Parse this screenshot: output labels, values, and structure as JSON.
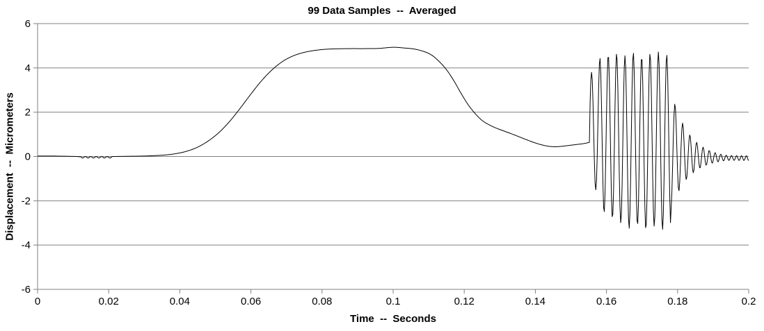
{
  "chart_data": {
    "type": "line",
    "title": "99 Data Samples  --  Averaged",
    "xlabel": "Time  --  Seconds",
    "ylabel": "Displacement  --  Micrometers",
    "xlim": [
      0,
      0.2
    ],
    "ylim": [
      -6,
      6
    ],
    "x_ticks": {
      "values": [
        0,
        0.02,
        0.04,
        0.06,
        0.08,
        0.1,
        0.12,
        0.14,
        0.16,
        0.18,
        0.2
      ],
      "labels": [
        "0",
        "0.02",
        "0.04",
        "0.06",
        "0.08",
        "0.1",
        "0.12",
        "0.14",
        "0.16",
        "0.18",
        "0.2"
      ]
    },
    "y_ticks": {
      "values": [
        6,
        4,
        2,
        0,
        -2,
        -4,
        -6
      ],
      "labels": [
        "6",
        "4",
        "2",
        "0",
        "-2",
        "-4",
        "-6"
      ]
    },
    "grid": {
      "horizontal": true,
      "vertical": false
    },
    "legend": "none",
    "colors": {
      "line": "#000000",
      "grid": "#808080",
      "axis": "#808080",
      "text": "#000000",
      "background": "#ffffff"
    },
    "sample_dt": 0.0002,
    "series": {
      "name": "displacement",
      "baseline_keypoints": [
        [
          0,
          0.02
        ],
        [
          0.004,
          0.02
        ],
        [
          0.008,
          0.01
        ],
        [
          0.0115,
          0.0
        ],
        [
          0.021,
          0.0
        ],
        [
          0.026,
          0.01
        ],
        [
          0.03,
          0.02
        ],
        [
          0.033,
          0.04
        ],
        [
          0.036,
          0.07
        ],
        [
          0.039,
          0.13
        ],
        [
          0.042,
          0.24
        ],
        [
          0.045,
          0.42
        ],
        [
          0.048,
          0.7
        ],
        [
          0.051,
          1.08
        ],
        [
          0.054,
          1.58
        ],
        [
          0.057,
          2.18
        ],
        [
          0.06,
          2.82
        ],
        [
          0.063,
          3.42
        ],
        [
          0.066,
          3.92
        ],
        [
          0.069,
          4.3
        ],
        [
          0.072,
          4.55
        ],
        [
          0.075,
          4.7
        ],
        [
          0.078,
          4.79
        ],
        [
          0.081,
          4.84
        ],
        [
          0.084,
          4.86
        ],
        [
          0.088,
          4.87
        ],
        [
          0.092,
          4.87
        ],
        [
          0.096,
          4.88
        ],
        [
          0.1,
          4.93
        ],
        [
          0.103,
          4.9
        ],
        [
          0.106,
          4.85
        ],
        [
          0.109,
          4.72
        ],
        [
          0.111,
          4.56
        ],
        [
          0.113,
          4.28
        ],
        [
          0.115,
          3.92
        ],
        [
          0.117,
          3.44
        ],
        [
          0.119,
          2.88
        ],
        [
          0.121,
          2.36
        ],
        [
          0.123,
          1.95
        ],
        [
          0.125,
          1.63
        ],
        [
          0.127,
          1.43
        ],
        [
          0.129,
          1.28
        ],
        [
          0.131,
          1.16
        ],
        [
          0.134,
          0.98
        ],
        [
          0.137,
          0.79
        ],
        [
          0.14,
          0.61
        ],
        [
          0.143,
          0.48
        ],
        [
          0.1455,
          0.44
        ],
        [
          0.148,
          0.47
        ],
        [
          0.151,
          0.53
        ],
        [
          0.1535,
          0.58
        ],
        [
          0.1553,
          0.64
        ]
      ],
      "noise_segment": {
        "t0": 0.0115,
        "t1": 0.021,
        "amp": 0.035,
        "freq": 650,
        "offset": -0.035
      },
      "burst": {
        "t_start": 0.1553,
        "t_end": 0.178125,
        "freq": 425.532,
        "first_peak_t": 0.1558,
        "peak_env": [
          [
            0.1558,
            3.8
          ],
          [
            0.15815,
            4.45
          ],
          [
            0.1605,
            4.6
          ],
          [
            0.16285,
            4.65
          ],
          [
            0.1652,
            4.55
          ],
          [
            0.16755,
            4.7
          ],
          [
            0.1699,
            4.5
          ],
          [
            0.17225,
            4.65
          ],
          [
            0.1746,
            4.72
          ],
          [
            0.17695,
            4.6
          ]
        ],
        "trough_env": [
          [
            0.156975,
            -1.5
          ],
          [
            0.15932,
            -2.55
          ],
          [
            0.161675,
            -2.8
          ],
          [
            0.16402,
            -3.0
          ],
          [
            0.166375,
            -3.25
          ],
          [
            0.16872,
            -3.1
          ],
          [
            0.171075,
            -3.3
          ],
          [
            0.17342,
            -3.15
          ],
          [
            0.175775,
            -3.3
          ],
          [
            0.178125,
            -3.2
          ]
        ]
      },
      "decay": {
        "t_start": 0.178125,
        "t_end": 0.2,
        "amp0": 2.7,
        "amp_tau": 0.005,
        "amp_floor": 0.11,
        "mean_end": -0.08,
        "mean_amp": 0.38,
        "mean_tau": 0.005,
        "freq_start": 425.532,
        "freq_end": 760
      }
    }
  }
}
